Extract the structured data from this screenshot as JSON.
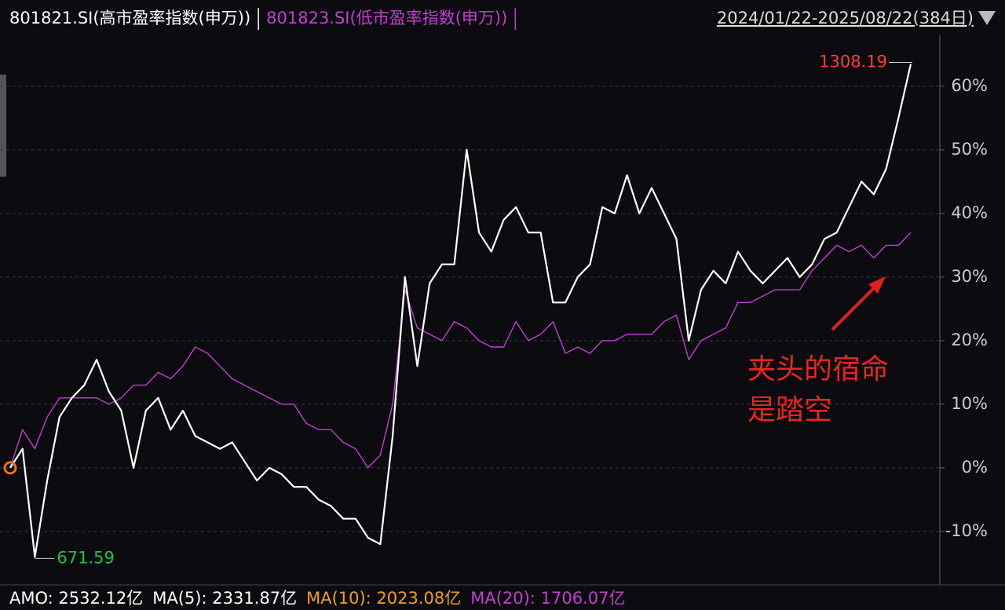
{
  "chart_data": {
    "type": "line",
    "date_range": "2024/01/22-2025/08/22(384日)",
    "series": [
      {
        "name": "801821.SI(高市盈率指数(申万))",
        "color": "#ffffff",
        "values": [
          0,
          3,
          -14,
          -2,
          8,
          11,
          13,
          17,
          12,
          9,
          0,
          9,
          11,
          6,
          9,
          5,
          4,
          3,
          4,
          1,
          -2,
          0,
          -1,
          -3,
          -3,
          -5,
          -6,
          -8,
          -8,
          -11,
          -12,
          5,
          30,
          16,
          29,
          32,
          32,
          50,
          37,
          34,
          39,
          41,
          37,
          37,
          26,
          26,
          30,
          32,
          41,
          40,
          46,
          40,
          44,
          40,
          36,
          20,
          28,
          31,
          29,
          34,
          31,
          29,
          31,
          33,
          30,
          32,
          36,
          37,
          41,
          45,
          43,
          47,
          55,
          63.5
        ]
      },
      {
        "name": "801823.SI(低市盈率指数(申万))",
        "color": "#c040d0",
        "values": [
          0,
          6,
          3,
          8,
          11,
          11,
          11,
          11,
          10,
          11,
          13,
          13,
          15,
          14,
          16,
          19,
          18,
          16,
          14,
          13,
          12,
          11,
          10,
          10,
          7,
          6,
          6,
          4,
          3,
          0,
          2,
          10,
          28,
          22,
          21,
          20,
          23,
          22,
          20,
          19,
          19,
          23,
          20,
          21,
          23,
          18,
          19,
          18,
          20,
          20,
          21,
          21,
          21,
          23,
          24,
          17,
          20,
          21,
          22,
          26,
          26,
          27,
          28,
          28,
          28,
          31,
          33,
          35,
          34,
          35,
          33,
          35,
          35,
          37
        ]
      }
    ],
    "ylim": [
      -18.4,
      68
    ],
    "yticks": [
      {
        "value": -10,
        "label": "-10%"
      },
      {
        "value": 0,
        "label": "0%"
      },
      {
        "value": 10,
        "label": "10%"
      },
      {
        "value": 20,
        "label": "20%"
      },
      {
        "value": 30,
        "label": "30%"
      },
      {
        "value": 40,
        "label": "40%"
      },
      {
        "value": 50,
        "label": "50%"
      },
      {
        "value": 60,
        "label": "60%"
      }
    ],
    "grid": true,
    "max_label": "1308.19",
    "min_label": "671.59",
    "annotation": [
      "夹头的宿命",
      "是踏空"
    ],
    "footer": [
      {
        "text": "AMO: 2532.12亿",
        "color": "#ffffff"
      },
      {
        "text": "MA(5): 2331.87亿",
        "color": "#ffffff"
      },
      {
        "text": "MA(10): 2023.08亿",
        "color": "#f0a020"
      },
      {
        "text": "MA(20): 1706.07亿",
        "color": "#c040d0"
      }
    ]
  }
}
